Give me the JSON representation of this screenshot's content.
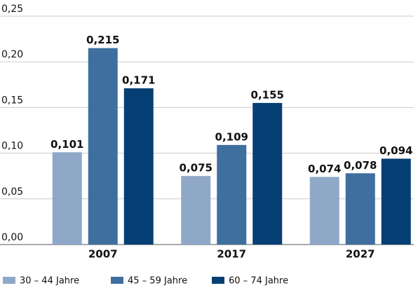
{
  "chart_data": {
    "type": "bar",
    "categories": [
      "2007",
      "2017",
      "2027"
    ],
    "series": [
      {
        "name": "30 – 44 Jahre",
        "color": "#8fa8c8",
        "values": [
          0.101,
          0.075,
          0.074
        ],
        "value_labels": [
          "0,101",
          "0,075",
          "0,074"
        ]
      },
      {
        "name": "45 – 59 Jahre",
        "color": "#3e6f9f",
        "values": [
          0.215,
          0.109,
          0.078
        ],
        "value_labels": [
          "0,215",
          "0,109",
          "0,078"
        ]
      },
      {
        "name": "60 – 74 Jahre",
        "color": "#063f73",
        "values": [
          0.171,
          0.155,
          0.094
        ],
        "value_labels": [
          "0,171",
          "0,155",
          "0,094"
        ]
      }
    ],
    "ylim": [
      0,
      0.25
    ],
    "yticks": [
      {
        "value": 0,
        "label": "0,00"
      },
      {
        "value": 0.05,
        "label": "0,05"
      },
      {
        "value": 0.1,
        "label": "0,10"
      },
      {
        "value": 0.15,
        "label": "0,15"
      },
      {
        "value": 0.2,
        "label": "0,20"
      },
      {
        "value": 0.25,
        "label": "0,25"
      }
    ],
    "grid": true,
    "legend": "bottom"
  }
}
